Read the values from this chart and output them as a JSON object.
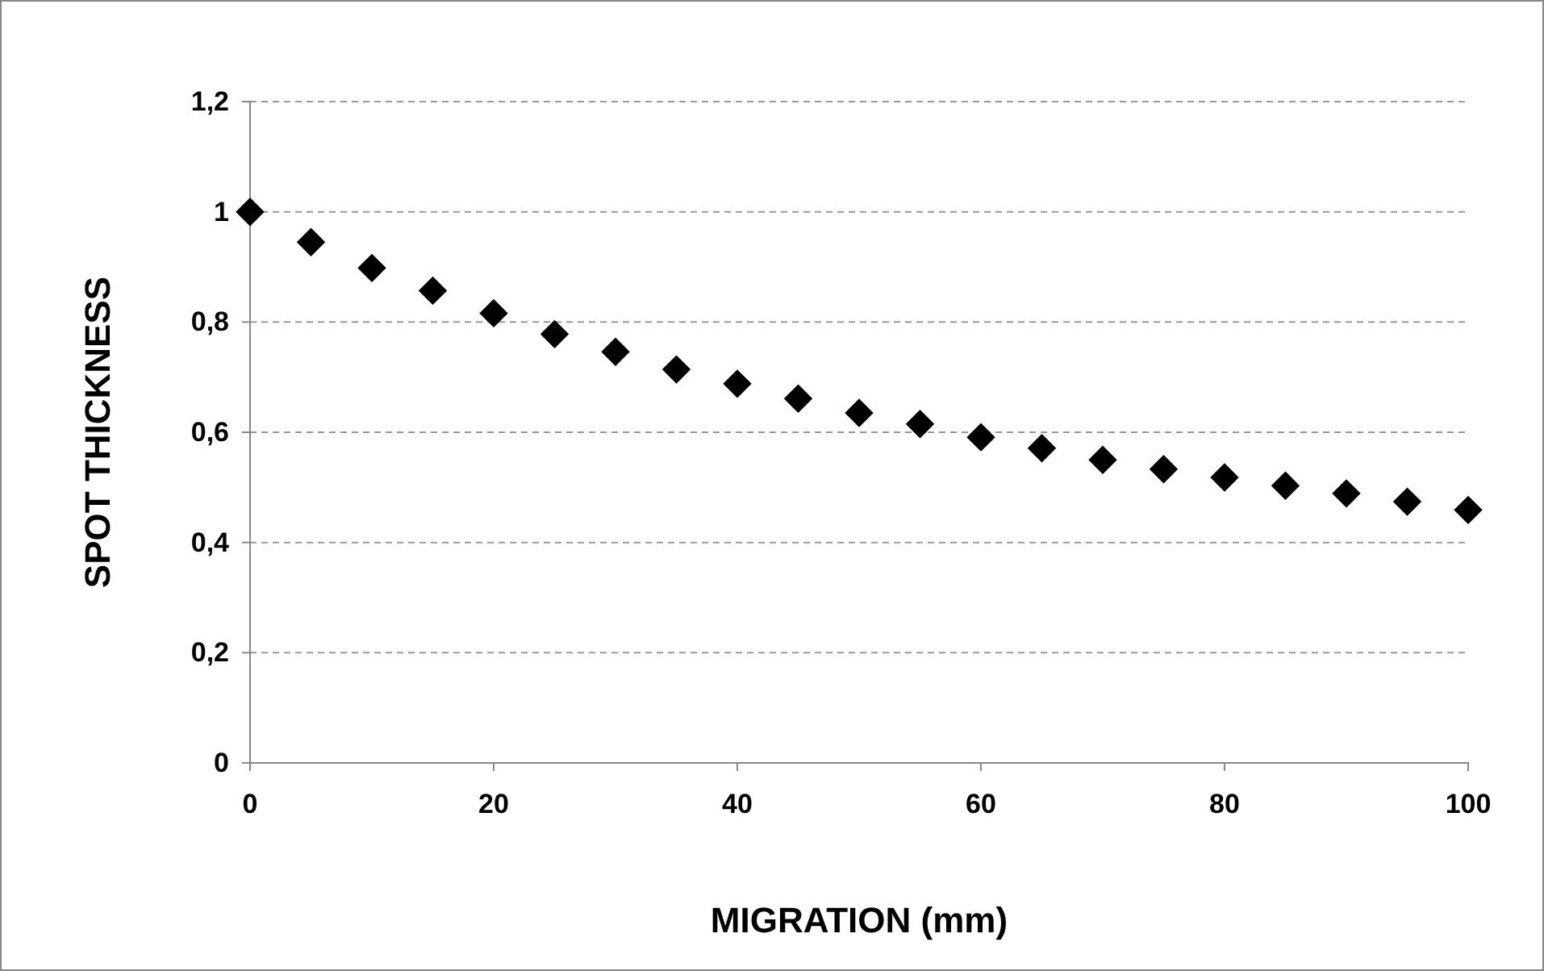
{
  "chart_data": {
    "type": "scatter",
    "xlabel": "MIGRATION (mm)",
    "ylabel": "SPOT THICKNESS",
    "x": [
      0,
      5,
      10,
      15,
      20,
      25,
      30,
      35,
      40,
      45,
      50,
      55,
      60,
      65,
      70,
      75,
      80,
      85,
      90,
      95,
      100
    ],
    "series": [
      {
        "color": "#000000",
        "values": [
          1.0,
          0.945,
          0.898,
          0.857,
          0.816,
          0.778,
          0.746,
          0.714,
          0.688,
          0.661,
          0.635,
          0.615,
          0.591,
          0.571,
          0.55,
          0.533,
          0.518,
          0.503,
          0.489,
          0.474,
          0.459
        ]
      }
    ],
    "xlim": [
      0,
      100
    ],
    "xticks": [
      0,
      20,
      40,
      60,
      80,
      100
    ],
    "ylim": [
      0,
      1.2
    ],
    "yticks": [
      0,
      {
        "value": 0.2,
        "label": "0,2"
      },
      {
        "value": 0.4,
        "label": "0,4"
      },
      {
        "value": 0.6,
        "label": "0,6"
      },
      {
        "value": 0.8,
        "label": "0,8"
      },
      1,
      {
        "value": 1.2,
        "label": "1,2"
      }
    ],
    "grid": "y",
    "marker": "diamond"
  }
}
